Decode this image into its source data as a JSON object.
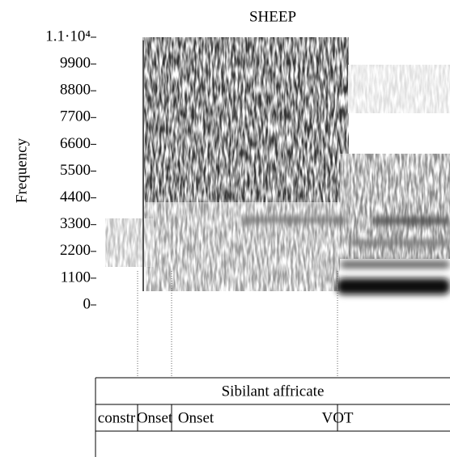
{
  "chart_data": {
    "type": "spectrogram",
    "title": "SHEEP",
    "y_label": "Frequency",
    "ylim": [
      0,
      11000
    ],
    "yticks": [
      0,
      1100,
      2200,
      3300,
      4400,
      5500,
      6600,
      7700,
      8800,
      9900,
      {
        "value": 11000,
        "label": "1.1·10⁴"
      }
    ],
    "tiers": [
      {
        "intervals": [
          "Sibilant affricate"
        ]
      },
      {
        "intervals": [
          "constr",
          "Onset",
          "Onset",
          "VOT"
        ]
      }
    ]
  }
}
